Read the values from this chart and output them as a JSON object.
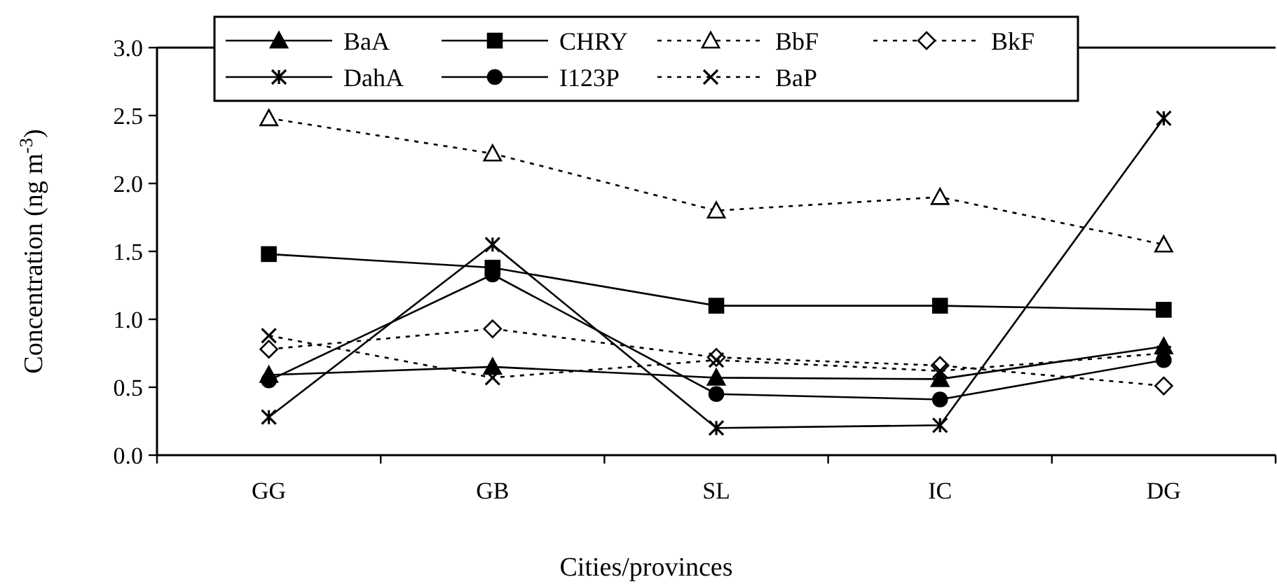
{
  "chart_data": {
    "type": "line",
    "xlabel": "Cities/provinces",
    "ylabel": "Concentration (ng m$^{-3}$)",
    "categories": [
      "GG",
      "GB",
      "SL",
      "IC",
      "DG"
    ],
    "ylim": [
      0,
      3
    ],
    "yticks": [
      {
        "value": 0,
        "label": "0.0"
      },
      {
        "value": 0.5,
        "label": "0.5"
      },
      {
        "value": 1,
        "label": "1.0"
      },
      {
        "value": 1.5,
        "label": "1.5"
      },
      {
        "value": 2,
        "label": "2.0"
      },
      {
        "value": 2.5,
        "label": "2.5"
      },
      {
        "value": 3,
        "label": "3.0"
      }
    ],
    "grid": false,
    "legend": "top",
    "series": [
      {
        "name": "BaA",
        "color": "#000000",
        "marker": "triangle",
        "line_style": "solid",
        "values": [
          0.59,
          0.65,
          0.57,
          0.56,
          0.8
        ]
      },
      {
        "name": "CHRY",
        "color": "#000000",
        "marker": "square",
        "line_style": "solid",
        "values": [
          1.48,
          1.38,
          1.1,
          1.1,
          1.07
        ]
      },
      {
        "name": "BbF",
        "color": "#000000",
        "marker": "triangle",
        "line_style": "dotted",
        "values": [
          2.48,
          2.22,
          1.8,
          1.9,
          1.55
        ]
      },
      {
        "name": "BkF",
        "color": "#000000",
        "marker": "diamond",
        "line_style": "dotted",
        "values": [
          0.78,
          0.93,
          0.72,
          0.66,
          0.51
        ]
      },
      {
        "name": "DahA",
        "color": "#000000",
        "marker": "cross",
        "line_style": "solid",
        "values": [
          0.28,
          1.55,
          0.2,
          0.22,
          2.48
        ]
      },
      {
        "name": "I123P",
        "color": "#000000",
        "marker": "circle",
        "line_style": "solid",
        "values": [
          0.55,
          1.33,
          0.45,
          0.41,
          0.7
        ]
      },
      {
        "name": "BaP",
        "color": "#000000",
        "marker": "cross",
        "line_style": "dotted",
        "values": [
          0.88,
          0.57,
          0.7,
          0.62,
          0.75
        ]
      }
    ]
  }
}
